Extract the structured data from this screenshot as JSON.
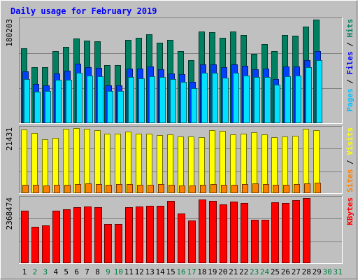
{
  "page": {
    "background": "#c0c0c0",
    "plot_background": "#c0c0c0",
    "border_light": "#ffffff",
    "border_dark": "#808080"
  },
  "chart_data": [
    {
      "type": "bar",
      "title": "Daily usage for February 2019",
      "title_color": "#0000ff",
      "x": [
        "1",
        "2",
        "3",
        "4",
        "5",
        "6",
        "7",
        "8",
        "9",
        "10",
        "11",
        "12",
        "13",
        "14",
        "15",
        "16",
        "17",
        "18",
        "19",
        "20",
        "21",
        "22",
        "23",
        "24",
        "25",
        "26",
        "27",
        "28",
        "29",
        "30",
        "31"
      ],
      "weekend_days": [
        "2",
        "3",
        "9",
        "10",
        "16",
        "17",
        "23",
        "24",
        "30",
        "31"
      ],
      "weekday_label_color": "#000000",
      "weekend_label_color": "#008040",
      "max_label": "180203",
      "ylim": [
        0,
        180203
      ],
      "right_axis_labels": [
        {
          "text": "Pages",
          "color": "#00c0ff"
        },
        {
          "text": " / ",
          "color": "#000000"
        },
        {
          "text": "Files",
          "color": "#0000ff"
        },
        {
          "text": " / ",
          "color": "#000000"
        },
        {
          "text": "Hits",
          "color": "#008060"
        }
      ],
      "series": [
        {
          "name": "Hits",
          "color": "#008060",
          "values": [
            130000,
            97000,
            97000,
            126000,
            133000,
            147000,
            144000,
            142000,
            101000,
            101000,
            145000,
            148000,
            155000,
            140000,
            145000,
            125000,
            109000,
            160000,
            158000,
            148000,
            160000,
            153000,
            121000,
            138000,
            126000,
            154000,
            152000,
            168000,
            180203,
            0,
            0
          ]
        },
        {
          "name": "Files",
          "color": "#0040ff",
          "values": [
            90000,
            68000,
            66000,
            87000,
            91000,
            104000,
            98000,
            96000,
            66000,
            66000,
            95000,
            95000,
            99000,
            94000,
            87000,
            85000,
            72000,
            102000,
            102000,
            98000,
            102000,
            100000,
            94000,
            95000,
            77000,
            99000,
            99000,
            110000,
            125000,
            0,
            0
          ]
        },
        {
          "name": "Pages",
          "color": "#00e0ff",
          "values": [
            77000,
            55000,
            56000,
            76000,
            76000,
            88000,
            83000,
            82000,
            56000,
            56000,
            80000,
            78000,
            82000,
            80000,
            77000,
            72000,
            61000,
            88000,
            88000,
            79000,
            88000,
            83000,
            80000,
            80000,
            67000,
            82000,
            83000,
            98000,
            110000,
            0,
            0
          ]
        }
      ]
    },
    {
      "type": "bar",
      "x": [
        "1",
        "2",
        "3",
        "4",
        "5",
        "6",
        "7",
        "8",
        "9",
        "10",
        "11",
        "12",
        "13",
        "14",
        "15",
        "16",
        "17",
        "18",
        "19",
        "20",
        "21",
        "22",
        "23",
        "24",
        "25",
        "26",
        "27",
        "28",
        "29",
        "30",
        "31"
      ],
      "max_label": "21431",
      "ylim": [
        0,
        21431
      ],
      "right_axis_labels": [
        {
          "text": "Sites",
          "color": "#ff8000"
        },
        {
          "text": " / ",
          "color": "#000000"
        },
        {
          "text": "Visits",
          "color": "#ffff00"
        }
      ],
      "series": [
        {
          "name": "Visits",
          "color": "#ffff00",
          "values": [
            21000,
            19800,
            17800,
            18200,
            21100,
            21431,
            21300,
            20700,
            19500,
            19600,
            20300,
            19500,
            19700,
            19100,
            19400,
            18700,
            18600,
            18400,
            20700,
            20500,
            19300,
            19700,
            20000,
            19300,
            18500,
            18700,
            19000,
            21100,
            20800,
            0,
            0
          ]
        },
        {
          "name": "Sites",
          "color": "#ff8000",
          "values": [
            2800,
            2700,
            2600,
            2700,
            2800,
            3100,
            3200,
            3100,
            2800,
            2900,
            2900,
            2800,
            2800,
            2900,
            2800,
            2600,
            2600,
            2700,
            2900,
            2800,
            2700,
            3000,
            3200,
            2900,
            2800,
            2800,
            3000,
            3300,
            3400,
            0,
            0
          ]
        }
      ]
    },
    {
      "type": "bar",
      "x": [
        "1",
        "2",
        "3",
        "4",
        "5",
        "6",
        "7",
        "8",
        "9",
        "10",
        "11",
        "12",
        "13",
        "14",
        "15",
        "16",
        "17",
        "18",
        "19",
        "20",
        "21",
        "22",
        "23",
        "24",
        "25",
        "26",
        "27",
        "28",
        "29",
        "30",
        "31"
      ],
      "max_label": "2368474",
      "ylim": [
        0,
        2368474
      ],
      "right_axis_labels": [
        {
          "text": "KBytes",
          "color": "#ff0000"
        }
      ],
      "series": [
        {
          "name": "KBytes",
          "color": "#ff0000",
          "values": [
            1900000,
            1330000,
            1380000,
            1910000,
            1950000,
            2050000,
            2060000,
            2030000,
            1420000,
            1420000,
            2040000,
            2060000,
            2090000,
            2080000,
            2270000,
            1800000,
            1560000,
            2310000,
            2270000,
            2140000,
            2250000,
            2190000,
            1590000,
            1570000,
            2210000,
            2190000,
            2300000,
            2368474,
            0,
            0,
            0
          ]
        }
      ]
    }
  ]
}
